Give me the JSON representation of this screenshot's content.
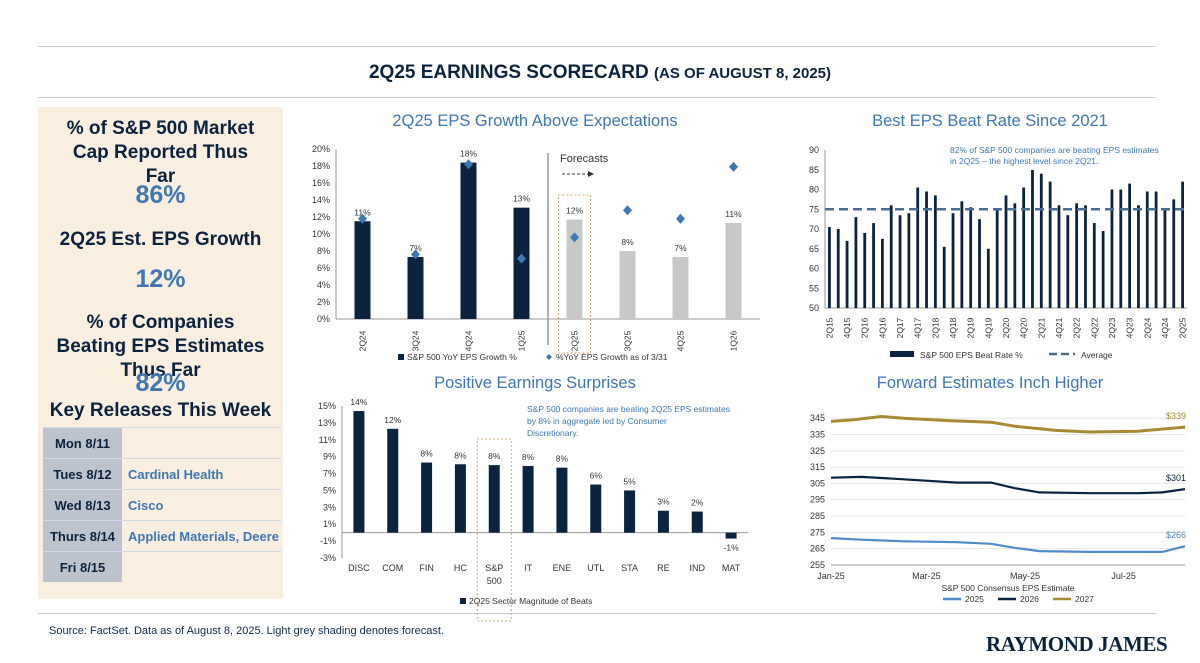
{
  "header": {
    "title": "2Q25 EARNINGS SCORECARD",
    "subtitle": "(AS OF AUGUST 8, 2025)"
  },
  "scorecard": {
    "market_cap_label": "% of S&P 500 Market Cap Reported Thus Far",
    "market_cap_value": "86%",
    "eps_growth_label": "2Q25 Est. EPS Growth",
    "eps_growth_value": "12%",
    "beating_label": "% of Companies Beating EPS Estimates Thus Far",
    "beating_value": "82%",
    "key_releases_title": "Key Releases This Week",
    "releases": [
      {
        "day": "Mon 8/11",
        "companies": ""
      },
      {
        "day": "Tues 8/12",
        "companies": "Cardinal Health"
      },
      {
        "day": "Wed 8/13",
        "companies": "Cisco"
      },
      {
        "day": "Thurs 8/14",
        "companies": "Applied Materials, Deere"
      },
      {
        "day": "Fri 8/15",
        "companies": ""
      }
    ]
  },
  "colors": {
    "navy": "#0c2340",
    "accent_blue": "#3f77b4",
    "forecast_grey": "#c8c8c8",
    "diamond": "#3f77b4",
    "gold": "#a88a34",
    "panel_bg": "#f8efe0",
    "forecast_box": "#c9a464"
  },
  "chart_data": [
    {
      "id": "eps_growth",
      "type": "bar",
      "title": "2Q25 EPS Growth Above Expectations",
      "categories": [
        "2Q24",
        "3Q24",
        "4Q24",
        "1Q25",
        "2Q25",
        "3Q25",
        "4Q25",
        "1Q26"
      ],
      "series": [
        {
          "name": "S&P 500 YoY EPS Growth %",
          "values": [
            11.5,
            7.3,
            18.4,
            13.1,
            11.7,
            8.0,
            7.3,
            11.3
          ],
          "labels": [
            "11%",
            "7%",
            "18%",
            "13%",
            "12%",
            "8%",
            "7%",
            "11%"
          ]
        },
        {
          "name": "%YoY EPS Growth as of 3/31",
          "values": [
            11.8,
            7.6,
            18.2,
            7.1,
            9.6,
            12.8,
            11.8,
            17.9
          ]
        }
      ],
      "forecast_start_index": 4,
      "highlight_index": 4,
      "annotation": "Forecasts",
      "yticks": [
        "0%",
        "2%",
        "4%",
        "6%",
        "8%",
        "10%",
        "12%",
        "14%",
        "16%",
        "18%",
        "20%"
      ],
      "ylim": [
        0,
        20
      ]
    },
    {
      "id": "beat_rate",
      "type": "bar",
      "title": "Best EPS Beat Rate Since 2021",
      "annotation": "82% of S&P 500 companies are beating EPS estimates in 2Q25 – the highest level since 2Q21.",
      "categories": [
        "2Q15",
        "3Q15",
        "4Q15",
        "1Q16",
        "2Q16",
        "3Q16",
        "4Q16",
        "1Q17",
        "2Q17",
        "3Q17",
        "4Q17",
        "1Q18",
        "2Q18",
        "3Q18",
        "4Q18",
        "1Q19",
        "2Q19",
        "3Q19",
        "4Q19",
        "1Q20",
        "2Q20",
        "3Q20",
        "4Q20",
        "1Q21",
        "2Q21",
        "3Q21",
        "4Q21",
        "1Q22",
        "2Q22",
        "3Q22",
        "4Q22",
        "1Q23",
        "2Q23",
        "3Q23",
        "4Q23",
        "1Q24",
        "2Q24",
        "3Q24",
        "4Q24",
        "1Q25",
        "2Q25"
      ],
      "xtick_labels": [
        "2Q15",
        "4Q15",
        "2Q16",
        "4Q16",
        "2Q17",
        "4Q17",
        "2Q18",
        "4Q18",
        "2Q19",
        "4Q19",
        "2Q20",
        "4Q20",
        "2Q21",
        "4Q21",
        "2Q22",
        "4Q22",
        "2Q23",
        "4Q23",
        "2Q24",
        "4Q24",
        "2Q25"
      ],
      "series": [
        {
          "name": "S&P 500 EPS Beat Rate %",
          "values": [
            70.5,
            70,
            67,
            73,
            69,
            71.5,
            67.5,
            76,
            73.5,
            74,
            80.5,
            79.5,
            78.5,
            65.5,
            74,
            77,
            75.5,
            72.5,
            65,
            75,
            78.5,
            76.5,
            80.5,
            86.5,
            84,
            82,
            76,
            73.5,
            76.5,
            76,
            71.5,
            69.5,
            80,
            80,
            81.5,
            76,
            79.5,
            79.5,
            75,
            77.5,
            82
          ]
        },
        {
          "name": "Average",
          "value": 75
        }
      ],
      "yticks": [
        "50",
        "55",
        "60",
        "65",
        "70",
        "75",
        "80",
        "85",
        "90"
      ],
      "ylim": [
        50,
        90
      ]
    },
    {
      "id": "surprises",
      "type": "bar",
      "title": "Positive Earnings Surprises",
      "annotation": "S&P 500 companies are beating 2Q25 EPS estimates by 8% in aggregate led by Consumer Discretionary.",
      "categories": [
        "DISC",
        "COM",
        "FIN",
        "HC",
        "S&P 500",
        "IT",
        "ENE",
        "UTL",
        "STA",
        "RE",
        "IND",
        "MAT"
      ],
      "series": [
        {
          "name": "2Q25 Sector Magnitude of Beats",
          "values": [
            14.4,
            12.3,
            8.3,
            8.1,
            8.0,
            7.9,
            7.7,
            5.7,
            5.0,
            2.6,
            2.5,
            -0.7
          ],
          "labels": [
            "14%",
            "12%",
            "8%",
            "8%",
            "8%",
            "8%",
            "8%",
            "6%",
            "5%",
            "3%",
            "2%",
            "-1%"
          ]
        }
      ],
      "highlight_index": 4,
      "yticks": [
        "-3%",
        "-1%",
        "1%",
        "3%",
        "5%",
        "7%",
        "9%",
        "11%",
        "13%",
        "15%"
      ],
      "ylim": [
        -3,
        15
      ]
    },
    {
      "id": "forward_eps",
      "type": "line",
      "title": "Forward Estimates Inch Higher",
      "xlabel": "S&P 500 Consensus EPS Estimate",
      "xticks": [
        "Jan-25",
        "Mar-25",
        "May-25",
        "Jul-25"
      ],
      "yticks": [
        "255",
        "265",
        "275",
        "285",
        "295",
        "305",
        "315",
        "325",
        "335",
        "345"
      ],
      "ylim": [
        255,
        350
      ],
      "series": [
        {
          "name": "2025",
          "end_label": "$266",
          "x": [
            "2025-01-01",
            "2025-01-20",
            "2025-02-15",
            "2025-03-20",
            "2025-04-10",
            "2025-04-25",
            "2025-05-10",
            "2025-06-10",
            "2025-07-10",
            "2025-07-25",
            "2025-08-08"
          ],
          "values": [
            271.5,
            270.5,
            269.5,
            269,
            268,
            265.5,
            263.5,
            263,
            263,
            263,
            266.5
          ]
        },
        {
          "name": "2026",
          "end_label": "$301",
          "x": [
            "2025-01-01",
            "2025-01-20",
            "2025-02-15",
            "2025-03-20",
            "2025-04-10",
            "2025-04-25",
            "2025-05-10",
            "2025-06-10",
            "2025-07-10",
            "2025-07-25",
            "2025-08-08"
          ],
          "values": [
            308.5,
            309,
            307.5,
            305.5,
            305.5,
            302,
            299.5,
            299,
            299,
            299.5,
            301.5
          ]
        },
        {
          "name": "2027",
          "end_label": "$339",
          "x": [
            "2025-01-01",
            "2025-01-15",
            "2025-02-01",
            "2025-02-15",
            "2025-03-15",
            "2025-04-10",
            "2025-04-25",
            "2025-05-20",
            "2025-06-10",
            "2025-07-10",
            "2025-08-08"
          ],
          "values": [
            343,
            344,
            346,
            345,
            343.5,
            342.5,
            340,
            337.5,
            336.5,
            337,
            339.5
          ]
        }
      ]
    }
  ],
  "footer": {
    "source": "Source: FactSet. Data as of August 8, 2025. Light grey shading denotes forecast.",
    "logo": "RAYMOND JAMES"
  }
}
